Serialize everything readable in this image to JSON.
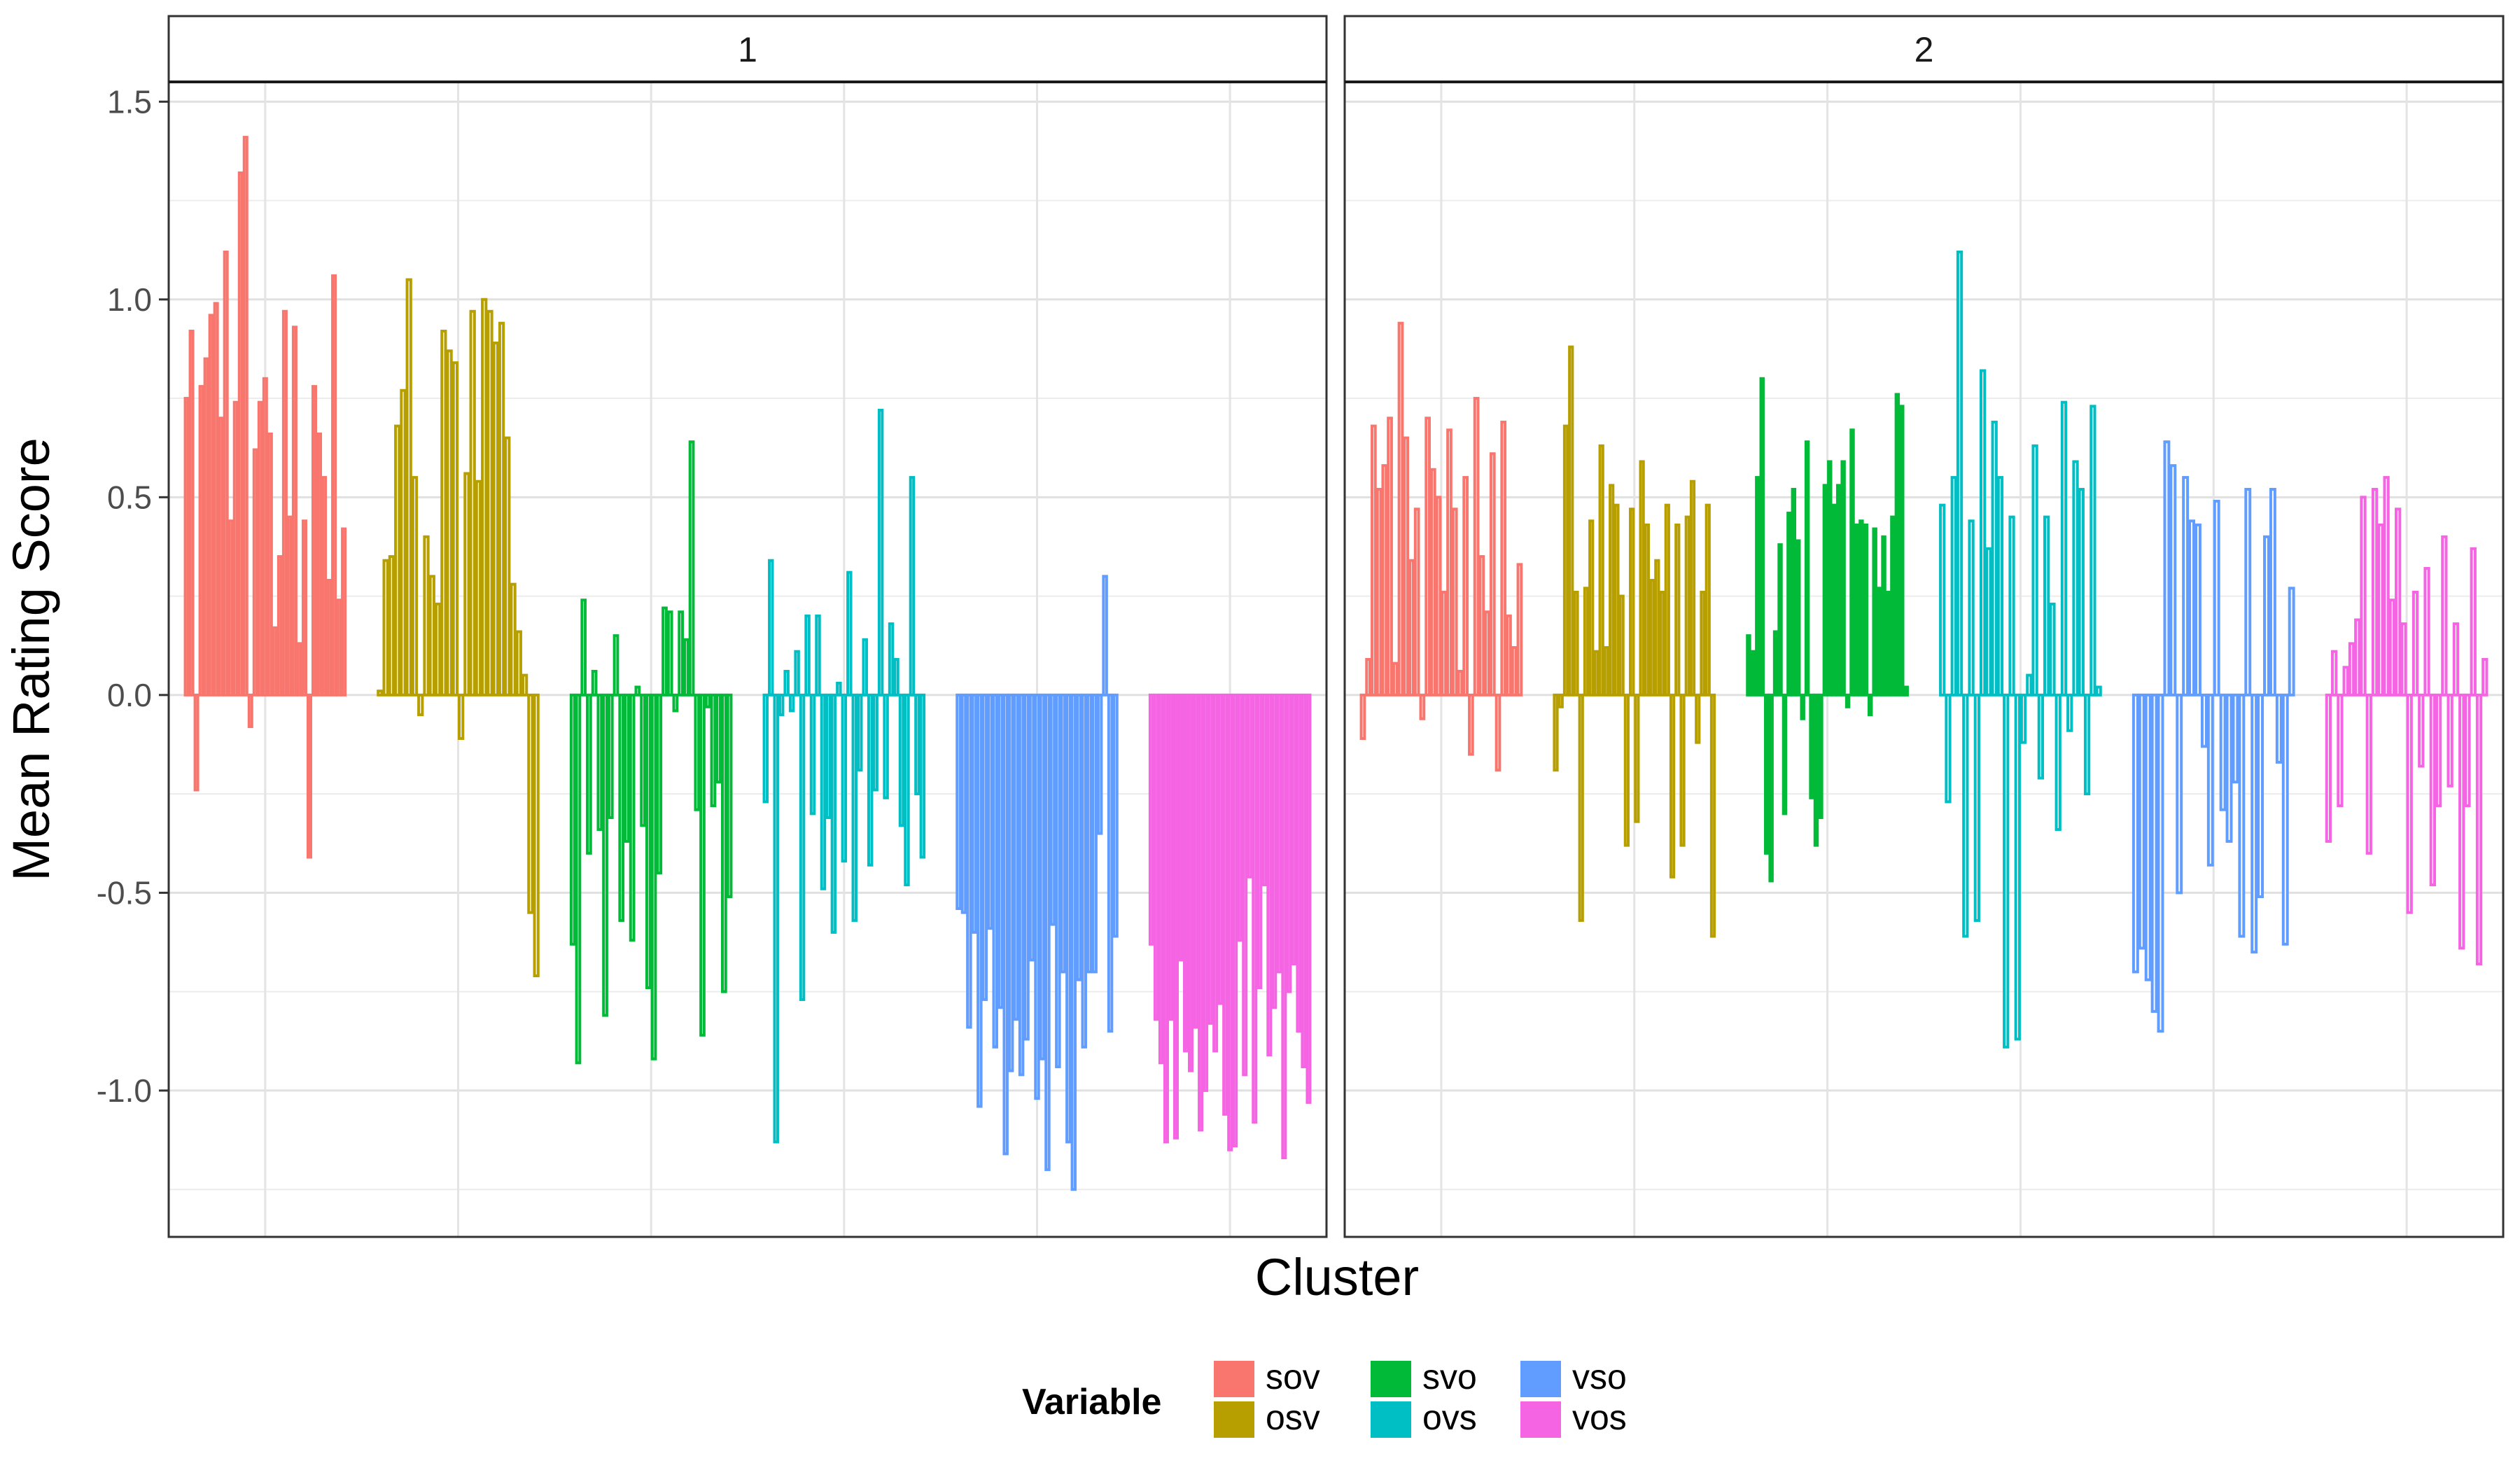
{
  "chart_data": {
    "type": "bar",
    "title": "",
    "xlabel": "Cluster",
    "ylabel": "Mean Rating Score",
    "ylim": [
      -1.37,
      1.55
    ],
    "yticks": [
      1.5,
      1.0,
      0.5,
      0.0,
      -0.5,
      -1.0
    ],
    "ytick_labels": [
      "1.5",
      "1.0",
      "0.5",
      "0.0",
      "-0.5",
      "-1.0"
    ],
    "grid": true,
    "legend": {
      "title": "Variable",
      "position": "bottom",
      "entries": [
        {
          "name": "sov",
          "color": "#F8766D"
        },
        {
          "name": "osv",
          "color": "#B79F00"
        },
        {
          "name": "svo",
          "color": "#00BA38"
        },
        {
          "name": "ovs",
          "color": "#00BFC4"
        },
        {
          "name": "vso",
          "color": "#619CFF"
        },
        {
          "name": "vos",
          "color": "#F564E3"
        }
      ]
    },
    "panels": [
      {
        "label": "1",
        "series": [
          {
            "name": "sov",
            "values": [
              0.75,
              0.92,
              -0.24,
              0.78,
              0.85,
              0.96,
              0.99,
              0.7,
              1.12,
              0.44,
              0.74,
              1.32,
              1.41,
              -0.08,
              0.62,
              0.74,
              0.8,
              0.66,
              0.17,
              0.35,
              0.97,
              0.45,
              0.93,
              0.13,
              0.44,
              -0.41,
              0.78,
              0.66,
              0.55,
              0.29,
              1.06,
              0.24,
              0.42
            ]
          },
          {
            "name": "osv",
            "values": [
              0.01,
              0.34,
              0.35,
              0.68,
              0.77,
              1.05,
              0.55,
              -0.05,
              0.4,
              0.3,
              0.23,
              0.92,
              0.87,
              0.84,
              -0.11,
              0.56,
              0.97,
              0.54,
              1.0,
              0.97,
              0.89,
              0.94,
              0.65,
              0.28,
              0.16,
              0.05,
              -0.55,
              -0.71
            ]
          },
          {
            "name": "svo",
            "values": [
              -0.63,
              -0.93,
              0.24,
              -0.4,
              0.06,
              -0.34,
              -0.81,
              -0.31,
              0.15,
              -0.57,
              -0.37,
              -0.62,
              0.02,
              -0.33,
              -0.74,
              -0.92,
              -0.45,
              0.22,
              0.21,
              -0.04,
              0.21,
              0.14,
              0.64,
              -0.29,
              -0.86,
              -0.03,
              -0.28,
              -0.22,
              -0.75,
              -0.51
            ]
          },
          {
            "name": "ovs",
            "values": [
              -0.27,
              0.34,
              -1.13,
              -0.05,
              0.06,
              -0.04,
              0.11,
              -0.77,
              0.2,
              -0.3,
              0.2,
              -0.49,
              -0.31,
              -0.6,
              0.03,
              -0.42,
              0.31,
              -0.57,
              -0.19,
              0.14,
              -0.43,
              -0.24,
              0.72,
              -0.26,
              0.18,
              0.09,
              -0.33,
              -0.48,
              0.55,
              -0.25,
              -0.41
            ]
          },
          {
            "name": "vso",
            "values": [
              -0.54,
              -0.55,
              -0.84,
              -0.6,
              -1.04,
              -0.77,
              -0.59,
              -0.89,
              -0.79,
              -1.16,
              -0.95,
              -0.82,
              -0.96,
              -0.87,
              -0.67,
              -1.02,
              -0.92,
              -1.2,
              -0.58,
              -0.94,
              -0.7,
              -1.13,
              -1.25,
              -0.72,
              -0.89,
              -0.7,
              -0.7,
              -0.35,
              0.3,
              -0.85,
              -0.61
            ]
          },
          {
            "name": "vos",
            "values": [
              -0.63,
              -0.82,
              -0.93,
              -1.13,
              -0.82,
              -1.12,
              -0.67,
              -0.9,
              -0.95,
              -0.84,
              -1.1,
              -1.0,
              -0.83,
              -0.9,
              -0.78,
              -1.06,
              -1.15,
              -1.14,
              -0.62,
              -0.96,
              -0.46,
              -1.08,
              -0.74,
              -0.48,
              -0.91,
              -0.79,
              -0.7,
              -1.17,
              -0.75,
              -0.68,
              -0.85,
              -0.94,
              -1.03
            ]
          }
        ]
      },
      {
        "label": "2",
        "series": [
          {
            "name": "sov",
            "values": [
              -0.11,
              0.09,
              0.68,
              0.52,
              0.58,
              0.7,
              0.08,
              0.94,
              0.65,
              0.34,
              0.47,
              -0.06,
              0.7,
              0.57,
              0.5,
              0.26,
              0.67,
              0.47,
              0.06,
              0.55,
              -0.15,
              0.75,
              0.35,
              0.21,
              0.61,
              -0.19,
              0.69,
              0.2,
              0.12,
              0.33
            ]
          },
          {
            "name": "osv",
            "values": [
              -0.19,
              -0.03,
              0.68,
              0.88,
              0.26,
              -0.57,
              0.27,
              0.44,
              0.11,
              0.63,
              0.12,
              0.53,
              0.48,
              0.25,
              -0.38,
              0.47,
              -0.32,
              0.59,
              0.43,
              0.29,
              0.34,
              0.26,
              0.48,
              -0.46,
              0.43,
              -0.38,
              0.45,
              0.54,
              -0.12,
              0.26,
              0.48,
              -0.61
            ]
          },
          {
            "name": "svo",
            "values": [
              0.15,
              0.11,
              0.55,
              0.8,
              -0.4,
              -0.47,
              0.16,
              0.38,
              -0.3,
              0.46,
              0.52,
              0.39,
              -0.06,
              0.64,
              -0.26,
              -0.38,
              -0.31,
              0.53,
              0.59,
              0.48,
              0.53,
              0.59,
              -0.03,
              0.67,
              0.43,
              0.44,
              0.43,
              -0.05,
              0.42,
              0.27,
              0.4,
              0.26,
              0.45,
              0.76,
              0.73,
              0.02
            ]
          },
          {
            "name": "ovs",
            "values": [
              0.48,
              -0.27,
              0.55,
              1.12,
              -0.61,
              0.44,
              -0.57,
              0.82,
              0.37,
              0.69,
              0.55,
              -0.89,
              0.45,
              -0.87,
              -0.12,
              0.05,
              0.63,
              -0.21,
              0.45,
              0.23,
              -0.34,
              0.74,
              -0.09,
              0.59,
              0.52,
              -0.25,
              0.73,
              0.02
            ]
          },
          {
            "name": "vso",
            "values": [
              -0.7,
              -0.64,
              -0.72,
              -0.8,
              -0.85,
              0.64,
              0.58,
              -0.5,
              0.55,
              0.44,
              0.43,
              -0.13,
              -0.43,
              0.49,
              -0.29,
              -0.37,
              -0.22,
              -0.61,
              0.52,
              -0.65,
              -0.51,
              0.4,
              0.52,
              -0.17,
              -0.63,
              0.27
            ]
          },
          {
            "name": "vos",
            "values": [
              -0.37,
              0.11,
              -0.28,
              0.07,
              0.13,
              0.19,
              0.5,
              -0.4,
              0.52,
              0.43,
              0.55,
              0.24,
              0.47,
              0.18,
              -0.55,
              0.26,
              -0.18,
              0.32,
              -0.48,
              -0.28,
              0.4,
              -0.23,
              0.18,
              -0.64,
              -0.28,
              0.37,
              -0.68,
              0.09
            ]
          }
        ]
      }
    ]
  }
}
